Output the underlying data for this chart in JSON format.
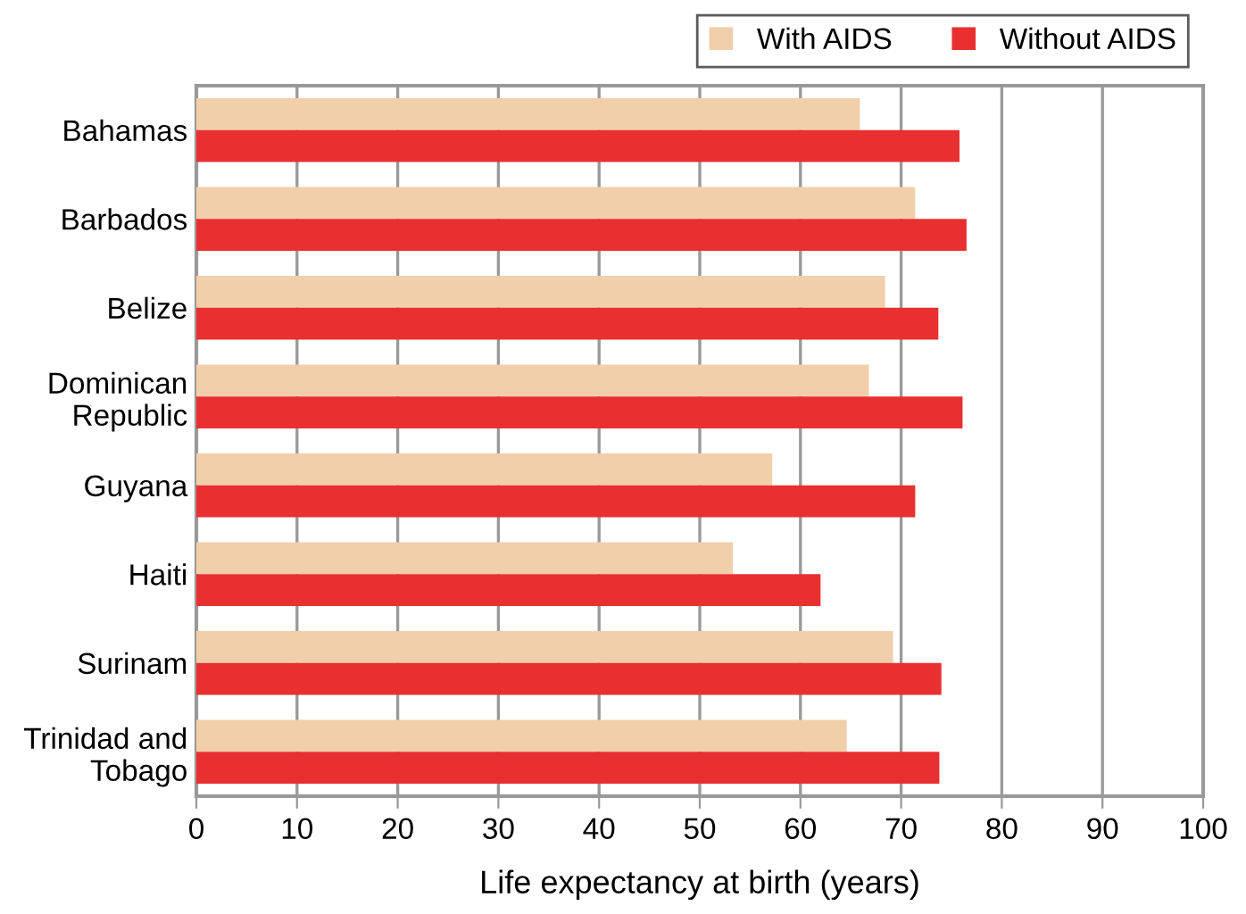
{
  "chart_data": {
    "type": "bar",
    "orientation": "horizontal",
    "xlabel": "Life expectancy at birth (years)",
    "categories": [
      "Bahamas",
      "Barbados",
      "Belize",
      "Dominican\nRepublic",
      "Guyana",
      "Haiti",
      "Surinam",
      "Trinidad and\nTobago"
    ],
    "series": [
      {
        "name": "With AIDS",
        "color": "#f1cfaa",
        "values": [
          65.9,
          71.4,
          68.4,
          66.8,
          57.2,
          53.3,
          69.2,
          64.6
        ]
      },
      {
        "name": "Without AIDS",
        "color": "#e83030",
        "values": [
          75.8,
          76.5,
          73.7,
          76.1,
          71.4,
          62.0,
          74.0,
          73.8
        ]
      }
    ],
    "xlim": [
      0,
      100
    ],
    "xticks": [
      0,
      10,
      20,
      30,
      40,
      50,
      60,
      70,
      80,
      90,
      100
    ],
    "grid": "x",
    "legend": "top right"
  }
}
